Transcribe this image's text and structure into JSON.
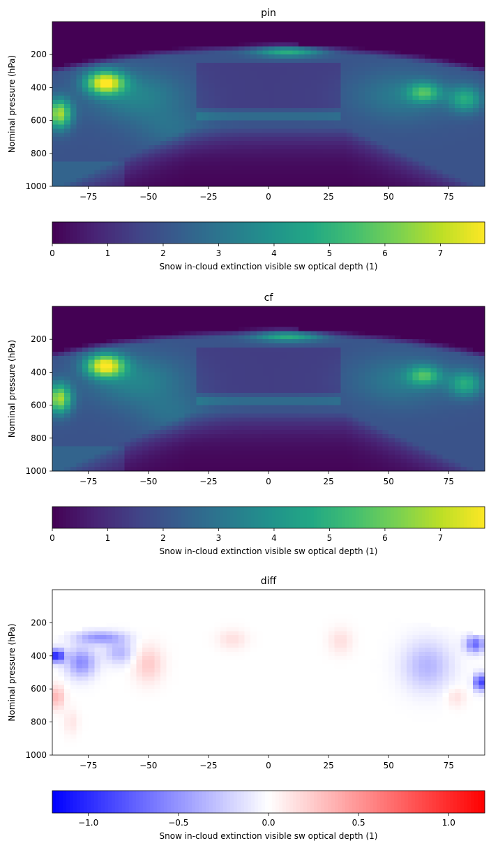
{
  "chart_data": [
    {
      "type": "heatmap",
      "title": "pin",
      "ylabel": "Nominal pressure (hPa)",
      "xlabel": "",
      "x_ticks": [
        -75,
        -50,
        -25,
        0,
        25,
        50,
        75
      ],
      "x_tick_labels": [
        "−75",
        "−50",
        "−25",
        "0",
        "25",
        "50",
        "75"
      ],
      "y_ticks": [
        200,
        400,
        600,
        800,
        1000
      ],
      "y_tick_labels": [
        "200",
        "400",
        "600",
        "800",
        "1000"
      ],
      "xlim": [
        -90,
        90
      ],
      "ylim": [
        1000,
        0
      ],
      "colormap": "viridis",
      "colorbar": {
        "label": "Snow in-cloud extinction visible sw optical depth (1)",
        "range": [
          0,
          7.8
        ],
        "ticks": [
          0,
          1,
          2,
          3,
          4,
          5,
          6,
          7
        ],
        "tick_labels": [
          "0",
          "1",
          "2",
          "3",
          "4",
          "5",
          "6",
          "7"
        ]
      },
      "features": [
        {
          "lat": -68,
          "p": 370,
          "value": 7.6
        },
        {
          "lat": -87,
          "p": 560,
          "value": 7.0
        },
        {
          "lat": 8,
          "p": 180,
          "value": 5.2
        },
        {
          "lat": 65,
          "p": 430,
          "value": 5.2
        },
        {
          "lat": 82,
          "p": 470,
          "value": 5.0
        },
        {
          "lat": 0,
          "p": 580,
          "value": 1.8
        }
      ]
    },
    {
      "type": "heatmap",
      "title": "cf",
      "ylabel": "Nominal pressure (hPa)",
      "xlabel": "",
      "x_ticks": [
        -75,
        -50,
        -25,
        0,
        25,
        50,
        75
      ],
      "x_tick_labels": [
        "−75",
        "−50",
        "−25",
        "0",
        "25",
        "50",
        "75"
      ],
      "y_ticks": [
        200,
        400,
        600,
        800,
        1000
      ],
      "y_tick_labels": [
        "200",
        "400",
        "600",
        "800",
        "1000"
      ],
      "xlim": [
        -90,
        90
      ],
      "ylim": [
        1000,
        0
      ],
      "colormap": "viridis",
      "colorbar": {
        "label": "Snow in-cloud extinction visible sw optical depth (1)",
        "range": [
          0,
          7.8
        ],
        "ticks": [
          0,
          1,
          2,
          3,
          4,
          5,
          6,
          7
        ],
        "tick_labels": [
          "0",
          "1",
          "2",
          "3",
          "4",
          "5",
          "6",
          "7"
        ]
      },
      "features": [
        {
          "lat": -68,
          "p": 360,
          "value": 7.8
        },
        {
          "lat": -87,
          "p": 560,
          "value": 6.8
        },
        {
          "lat": 8,
          "p": 180,
          "value": 5.0
        },
        {
          "lat": 65,
          "p": 420,
          "value": 5.0
        },
        {
          "lat": 82,
          "p": 470,
          "value": 4.8
        },
        {
          "lat": 0,
          "p": 580,
          "value": 1.6
        }
      ]
    },
    {
      "type": "heatmap",
      "title": "diff",
      "ylabel": "Nominal pressure (hPa)",
      "xlabel": "",
      "x_ticks": [
        -75,
        -50,
        -25,
        0,
        25,
        50,
        75
      ],
      "x_tick_labels": [
        "−75",
        "−50",
        "−25",
        "0",
        "25",
        "50",
        "75"
      ],
      "y_ticks": [
        200,
        400,
        600,
        800,
        1000
      ],
      "y_tick_labels": [
        "200",
        "400",
        "600",
        "800",
        "1000"
      ],
      "xlim": [
        -90,
        90
      ],
      "ylim": [
        1000,
        0
      ],
      "colormap": "bwr",
      "colorbar": {
        "label": "Snow in-cloud extinction visible sw optical depth (1)",
        "range": [
          -1.2,
          1.2
        ],
        "ticks": [
          -1.0,
          -0.5,
          0.0,
          0.5,
          1.0
        ],
        "tick_labels": [
          "−1.0",
          "−0.5",
          "0.0",
          "0.5",
          "1.0"
        ]
      },
      "features": [
        {
          "lat": -88,
          "p": 400,
          "value": -1.1
        },
        {
          "lat": -70,
          "p": 300,
          "value": -0.5
        },
        {
          "lat": -78,
          "p": 420,
          "value": -0.6
        },
        {
          "lat": 88,
          "p": 550,
          "value": -0.9
        },
        {
          "lat": 85,
          "p": 330,
          "value": -0.7
        },
        {
          "lat": 65,
          "p": 450,
          "value": -0.3
        },
        {
          "lat": -50,
          "p": 450,
          "value": 0.25
        },
        {
          "lat": -15,
          "p": 300,
          "value": 0.15
        },
        {
          "lat": 30,
          "p": 300,
          "value": 0.15
        },
        {
          "lat": -88,
          "p": 650,
          "value": 0.35
        }
      ]
    }
  ]
}
